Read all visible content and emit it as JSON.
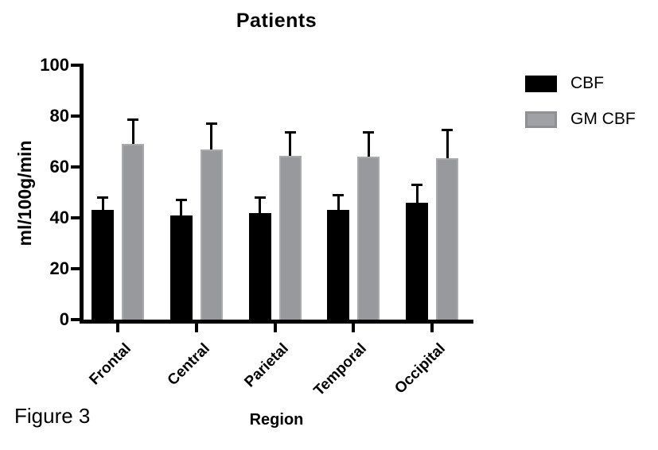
{
  "figure_label": "Figure 3",
  "chart_data": {
    "type": "bar",
    "title": "Patients",
    "xlabel": "Region",
    "ylabel": "ml/100g/min",
    "categories": [
      "Frontal",
      "Central",
      "Parietal",
      "Temporal",
      "Occipital"
    ],
    "series": [
      {
        "name": "CBF",
        "color": "#000000",
        "values": [
          43,
          41,
          42,
          43,
          46
        ],
        "errors": [
          5.5,
          6.5,
          6.5,
          6.5,
          7.5
        ]
      },
      {
        "name": "GM CBF",
        "color": "#98999c",
        "border_color": "#a9aaad",
        "values": [
          69,
          67,
          64.5,
          64,
          63.5
        ],
        "errors": [
          10,
          10.5,
          9.5,
          10,
          11.5
        ]
      }
    ],
    "ylim": [
      0,
      100
    ],
    "yticks": [
      0,
      20,
      40,
      60,
      80,
      100
    ],
    "error_bars": "upper",
    "grid": false,
    "legend_position": "top-right"
  }
}
